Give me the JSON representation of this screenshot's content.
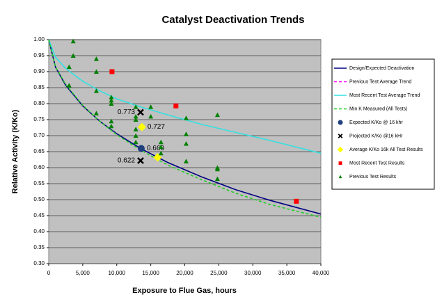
{
  "chart_data": {
    "type": "scatter",
    "title": "Catalyst Deactivation Trends",
    "x_label": "Exposure to Flue Gas, hours",
    "y_label": "Relative Activity (K/Ko)",
    "xlim": [
      0,
      40000
    ],
    "xticks": [
      0,
      {
        "value": 5000,
        "label": "5,000"
      },
      {
        "value": 10000,
        "label": "10,000"
      },
      {
        "value": 15000,
        "label": "15,000"
      },
      {
        "value": 20000,
        "label": "20,000"
      },
      {
        "value": 25000,
        "label": "25,000"
      },
      {
        "value": 30000,
        "label": "30,000"
      },
      {
        "value": 35000,
        "label": "35,000"
      },
      {
        "value": 40000,
        "label": "40,000"
      }
    ],
    "ylim": [
      0.3,
      1.0
    ],
    "yticks": [
      {
        "value": 0.3,
        "label": "0.30"
      },
      0.35,
      {
        "value": 0.4,
        "label": "0.40"
      },
      0.45,
      {
        "value": 0.5,
        "label": "0.50"
      },
      0.55,
      {
        "value": 0.6,
        "label": "0.60"
      },
      0.65,
      {
        "value": 0.7,
        "label": "0.70"
      },
      0.75,
      {
        "value": 0.8,
        "label": "0.80"
      },
      0.85,
      {
        "value": 0.9,
        "label": "0.90"
      },
      0.95,
      {
        "value": 1.0,
        "label": "1.00"
      }
    ],
    "grid": true,
    "legend": "right",
    "series": [
      {
        "name": "Design/Expected Deactivation",
        "color": "#000080",
        "marker": "line",
        "x": [
          0,
          1000,
          2500,
          5000,
          7500,
          10000,
          13500,
          17500,
          22500,
          27500,
          32500,
          40000
        ],
        "values": [
          1.0,
          0.914,
          0.857,
          0.793,
          0.745,
          0.706,
          0.66,
          0.616,
          0.571,
          0.531,
          0.498,
          0.455
        ]
      },
      {
        "name": "Previous Test Average Trend",
        "color": "#ff00ff",
        "marker": "dashed"
      },
      {
        "name": "Most Recent Test Average Trend",
        "color": "#33e0e0",
        "marker": "line",
        "x": [
          0,
          1000,
          2500,
          5000,
          7500,
          10000,
          13500,
          17500,
          22500,
          27500,
          32500,
          40000
        ],
        "values": [
          1.0,
          0.945,
          0.91,
          0.87,
          0.84,
          0.815,
          0.79,
          0.765,
          0.735,
          0.71,
          0.685,
          0.645
        ]
      },
      {
        "name": "Min K Measured (All Tests)",
        "color": "#22cc22",
        "marker": "dashed",
        "x": [
          0,
          1000,
          2500,
          5000,
          7500,
          10000,
          13500,
          17500,
          22500,
          27500,
          32500,
          40000
        ],
        "values": [
          1.0,
          0.915,
          0.86,
          0.795,
          0.745,
          0.703,
          0.655,
          0.608,
          0.562,
          0.52,
          0.485,
          0.445
        ]
      },
      {
        "name": "Expected K/Ko @ 16 khr",
        "color": "#1f3f7f",
        "marker": "circle",
        "x": [
          13600
        ],
        "values": [
          0.66
        ],
        "value_labels": [
          "0.660"
        ]
      },
      {
        "name": "Projected K/Ko @16 kHr",
        "color": "#000000",
        "marker": "x",
        "x": [
          13500,
          13500
        ],
        "values": [
          0.773,
          0.622
        ],
        "value_labels": [
          "0.773",
          "0.622"
        ]
      },
      {
        "name": "Average K/Ko 16k All Test Results",
        "color": "#ffff00",
        "marker": "diamond",
        "x": [
          13700,
          16000
        ],
        "values": [
          0.727,
          0.632
        ],
        "value_labels": [
          "0.727",
          null
        ]
      },
      {
        "name": "Most Recent Test Results",
        "color": "#ff0000",
        "marker": "square",
        "x": [
          9300,
          18700,
          36400
        ],
        "values": [
          0.9,
          0.793,
          0.495
        ]
      },
      {
        "name": "Previous Test Results",
        "color": "#008000",
        "marker": "triangle",
        "x": [
          3600,
          3600,
          3000,
          3000,
          7000,
          7000,
          7000,
          7000,
          9200,
          9200,
          9200,
          9200,
          9200,
          12800,
          12800,
          12800,
          12800,
          12800,
          12800,
          15000,
          15000,
          16500,
          16500,
          16500,
          20200,
          20200,
          20200,
          20200,
          24800,
          24800,
          24800,
          24800
        ],
        "values": [
          0.995,
          0.95,
          0.915,
          0.857,
          0.94,
          0.9,
          0.84,
          0.77,
          0.82,
          0.81,
          0.8,
          0.745,
          0.73,
          0.79,
          0.76,
          0.75,
          0.72,
          0.7,
          0.68,
          0.79,
          0.76,
          0.68,
          0.665,
          0.645,
          0.755,
          0.705,
          0.675,
          0.62,
          0.765,
          0.6,
          0.595,
          0.565
        ]
      }
    ]
  }
}
